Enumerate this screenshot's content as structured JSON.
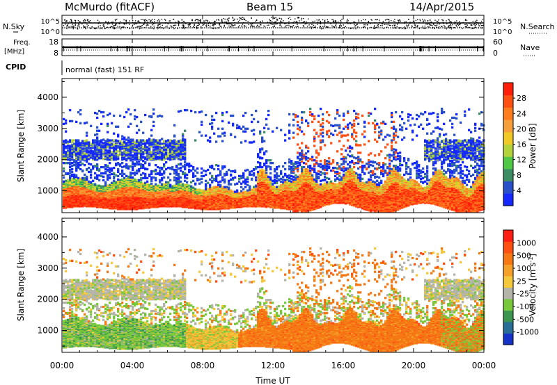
{
  "header": {
    "station": "McMurdo (fitACF)",
    "beam": "Beam 15",
    "date": "14/Apr/2015"
  },
  "noise_panel": {
    "left_label": "N.Sky",
    "right_label": "N.Search",
    "left_ticks": [
      "10^5",
      "10^0"
    ],
    "right_ticks": [
      "10^5",
      "10^0"
    ]
  },
  "freq_panel": {
    "left_label_1": "Freq.",
    "left_label_2": "[MHz]",
    "right_label": "Nave",
    "left_ticks": [
      "18",
      "8"
    ],
    "right_ticks": [
      "60",
      "0"
    ]
  },
  "cpid": {
    "label": "CPID",
    "text": "normal (fast) 151 RF"
  },
  "chart_data": [
    {
      "type": "heatmap",
      "name": "power",
      "ylabel": "Slant Range [km]",
      "yticks": [
        1000,
        2000,
        3000,
        4000
      ],
      "ylim": [
        300,
        4600
      ],
      "colorbar": {
        "label": "Power [dB]",
        "ticks": [
          4,
          8,
          12,
          16,
          20,
          24,
          28
        ],
        "range": [
          0,
          32
        ],
        "colors": [
          "#1428ff",
          "#2850c8",
          "#3c8c64",
          "#50c846",
          "#b4d23c",
          "#f0c828",
          "#f5a03c",
          "#ff7d1e",
          "#ff5014",
          "#ff1e0a"
        ]
      }
    },
    {
      "type": "heatmap",
      "name": "velocity",
      "ylabel": "Slant Range [km]",
      "yticks": [
        1000,
        2000,
        3000,
        4000
      ],
      "ylim": [
        300,
        4600
      ],
      "colorbar": {
        "label": "Velocity [m s",
        "label_sup": "-1",
        "label_end": "]",
        "ticks": [
          "1000",
          "500",
          "100",
          "25",
          "-25",
          "-100",
          "-500",
          "-1000"
        ],
        "colors": [
          "#1432c8",
          "#286e96",
          "#3c9650",
          "#78c83c",
          "#b4b4aa",
          "#f5c83c",
          "#f5a028",
          "#f57814",
          "#ff5014",
          "#ff1e14"
        ]
      }
    }
  ],
  "x_axis": {
    "label": "Time UT",
    "ticks": [
      "00:00",
      "04:00",
      "08:00",
      "12:00",
      "16:00",
      "20:00",
      "00:00"
    ],
    "range_hours": [
      0,
      24
    ]
  }
}
